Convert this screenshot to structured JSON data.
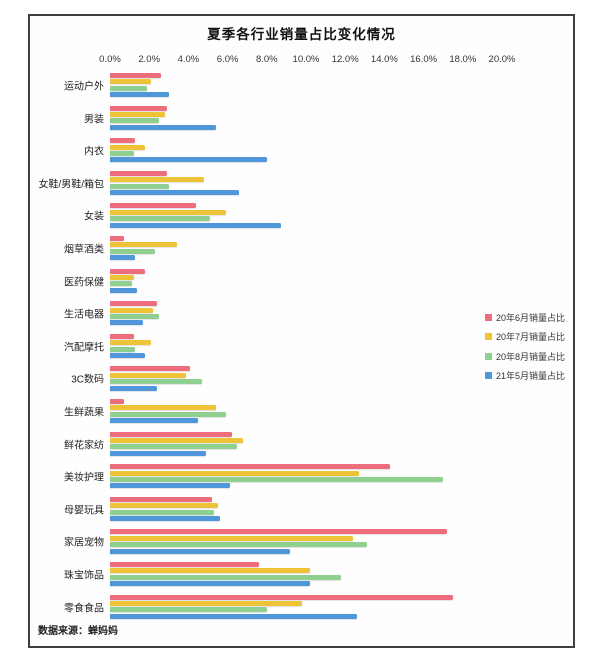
{
  "title": "夏季各行业销量占比变化情况",
  "source_note": "数据来源：蝉妈妈",
  "colors": {
    "border": "#3f3f3f",
    "red": "#ED6D7D",
    "yellow": "#EFC337",
    "green": "#8FCF90",
    "blue": "#4F96DB"
  },
  "chart_data": {
    "type": "bar",
    "orientation": "horizontal",
    "title": "夏季各行业销量占比变化情况",
    "xlabel": "",
    "ylabel": "",
    "x_axis": {
      "position": "top",
      "min": 0,
      "max": 20,
      "unit": "%",
      "ticks": [
        "0.0%",
        "2.0%",
        "4.0%",
        "6.0%",
        "8.0%",
        "10.0%",
        "12.0%",
        "14.0%",
        "16.0%",
        "18.0%",
        "20.0%"
      ]
    },
    "grid": false,
    "legend_position": "right",
    "categories": [
      "运动户外",
      "男装",
      "内衣",
      "女鞋/男鞋/箱包",
      "女装",
      "烟草酒类",
      "医药保健",
      "生活电器",
      "汽配摩托",
      "3C数码",
      "生鲜蔬果",
      "鲜花家纺",
      "美妆护理",
      "母婴玩具",
      "家居宠物",
      "珠宝饰品",
      "零食食品"
    ],
    "series": [
      {
        "name": "20年6月销量占比",
        "color": "#ED6D7D",
        "values": [
          2.6,
          2.9,
          1.3,
          2.9,
          4.4,
          0.7,
          1.8,
          2.4,
          1.2,
          4.1,
          0.7,
          6.2,
          14.3,
          5.2,
          17.2,
          7.6,
          17.5
        ]
      },
      {
        "name": "20年7月销量占比",
        "color": "#EFC337",
        "values": [
          2.1,
          2.8,
          1.8,
          4.8,
          5.9,
          3.4,
          1.2,
          2.2,
          2.1,
          3.9,
          5.4,
          6.8,
          12.7,
          5.5,
          12.4,
          10.2,
          9.8
        ]
      },
      {
        "name": "20年8月销量占比",
        "color": "#8FCF90",
        "values": [
          1.9,
          2.5,
          1.2,
          3.0,
          5.1,
          2.3,
          1.1,
          2.5,
          1.3,
          4.7,
          5.9,
          6.5,
          17.0,
          5.3,
          13.1,
          11.8,
          8.0
        ]
      },
      {
        "name": "21年5月销量占比",
        "color": "#4F96DB",
        "values": [
          3.0,
          5.4,
          8.0,
          6.6,
          8.7,
          1.3,
          1.4,
          1.7,
          1.8,
          2.4,
          4.5,
          4.9,
          6.1,
          5.6,
          9.2,
          10.2,
          12.6
        ]
      }
    ]
  }
}
